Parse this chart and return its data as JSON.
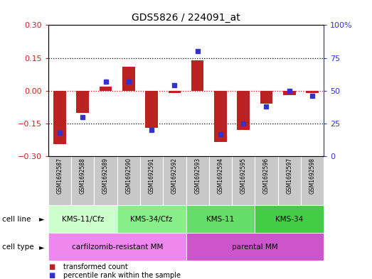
{
  "title": "GDS5826 / 224091_at",
  "samples": [
    "GSM1692587",
    "GSM1692588",
    "GSM1692589",
    "GSM1692590",
    "GSM1692591",
    "GSM1692592",
    "GSM1692593",
    "GSM1692594",
    "GSM1692595",
    "GSM1692596",
    "GSM1692597",
    "GSM1692598"
  ],
  "transformed_count": [
    -0.245,
    -0.1,
    0.02,
    0.11,
    -0.17,
    -0.01,
    0.14,
    -0.235,
    -0.18,
    -0.06,
    -0.02,
    -0.01
  ],
  "percentile_rank": [
    18,
    30,
    57,
    57,
    20,
    54,
    80,
    17,
    25,
    38,
    50,
    46
  ],
  "ylim_left": [
    -0.3,
    0.3
  ],
  "ylim_right": [
    0,
    100
  ],
  "yticks_left": [
    -0.3,
    -0.15,
    0,
    0.15,
    0.3
  ],
  "yticks_right": [
    0,
    25,
    50,
    75,
    100
  ],
  "hlines": [
    0.15,
    0,
    -0.15
  ],
  "bar_color": "#bb2222",
  "dot_color": "#3333cc",
  "cell_line_groups": [
    {
      "label": "KMS-11/Cfz",
      "start": 0,
      "end": 3,
      "color": "#ccffcc"
    },
    {
      "label": "KMS-34/Cfz",
      "start": 3,
      "end": 6,
      "color": "#88ee88"
    },
    {
      "label": "KMS-11",
      "start": 6,
      "end": 9,
      "color": "#66dd66"
    },
    {
      "label": "KMS-34",
      "start": 9,
      "end": 12,
      "color": "#44cc44"
    }
  ],
  "cell_type_groups": [
    {
      "label": "carfilzomib-resistant MM",
      "start": 0,
      "end": 6,
      "color": "#ee88ee"
    },
    {
      "label": "parental MM",
      "start": 6,
      "end": 12,
      "color": "#cc55cc"
    }
  ],
  "legend_items": [
    {
      "color": "#bb2222",
      "label": "transformed count"
    },
    {
      "color": "#3333cc",
      "label": "percentile rank within the sample"
    }
  ],
  "bar_width": 0.55,
  "dot_size": 30,
  "cell_line_row_label": "cell line",
  "cell_type_row_label": "cell type",
  "axis_left_color": "#cc2222",
  "axis_right_color": "#3333cc",
  "gsm_bg_color": "#c8c8c8",
  "gsm_border_color": "#ffffff"
}
